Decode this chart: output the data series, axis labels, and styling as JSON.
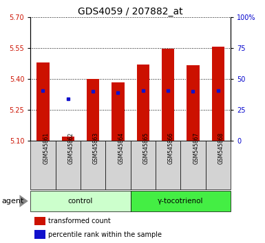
{
  "title": "GDS4059 / 207882_at",
  "samples": [
    "GSM545861",
    "GSM545862",
    "GSM545863",
    "GSM545864",
    "GSM545865",
    "GSM545866",
    "GSM545867",
    "GSM545868"
  ],
  "red_bar_tops": [
    5.48,
    5.12,
    5.4,
    5.385,
    5.47,
    5.545,
    5.465,
    5.555
  ],
  "blue_y": [
    5.345,
    5.305,
    5.34,
    5.335,
    5.345,
    5.345,
    5.34,
    5.345
  ],
  "bar_base": 5.1,
  "ylim_left": [
    5.1,
    5.7
  ],
  "yticks_left": [
    5.1,
    5.25,
    5.4,
    5.55,
    5.7
  ],
  "ylim_right": [
    0,
    100
  ],
  "yticks_right": [
    0,
    25,
    50,
    75,
    100
  ],
  "ytick_labels_right": [
    "0",
    "25",
    "50",
    "75",
    "100%"
  ],
  "bar_color": "#cc1100",
  "blue_color": "#1111cc",
  "bar_width": 0.5,
  "group_labels": [
    "control",
    "γ-tocotrienol"
  ],
  "group_ranges": [
    [
      0,
      3
    ],
    [
      4,
      7
    ]
  ],
  "group_light_color": "#ccffcc",
  "group_dark_color": "#44ee44",
  "agent_label": "agent",
  "legend_items": [
    {
      "color": "#cc1100",
      "label": "transformed count"
    },
    {
      "color": "#1111cc",
      "label": "percentile rank within the sample"
    }
  ],
  "background_color": "#ffffff",
  "label_color_left": "#cc1100",
  "label_color_right": "#0000cc",
  "title_fontsize": 10,
  "tick_fontsize": 7,
  "sample_tick_fontsize": 5.5
}
